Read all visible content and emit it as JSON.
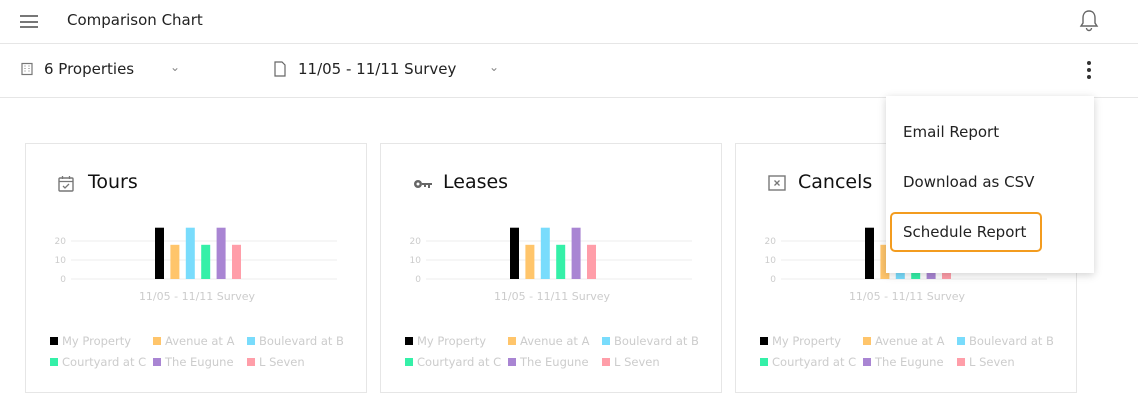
{
  "header": {
    "title": "Comparison Chart"
  },
  "toolbar": {
    "properties": "6 Properties",
    "survey": "11/05 - 11/11 Survey"
  },
  "menu": {
    "items": [
      "Email Report",
      "Download as CSV",
      "Schedule Report"
    ],
    "focused": 2
  },
  "legend": [
    {
      "name": "My Property",
      "color": "#000000"
    },
    {
      "name": "Avenue at A",
      "color": "#ffc56b"
    },
    {
      "name": "Boulevard at B",
      "color": "#79dcfc"
    },
    {
      "name": "Courtyard at C",
      "color": "#35f0a8"
    },
    {
      "name": "The Eugune",
      "color": "#a985d3"
    },
    {
      "name": "L Seven",
      "color": "#ff9ea9"
    }
  ],
  "chart_data": [
    {
      "type": "bar",
      "title": "Tours",
      "xlabel": "11/05 - 11/11 Survey",
      "yticks": [
        "0",
        "10",
        "20"
      ],
      "ylim": [
        0,
        30
      ],
      "values": [
        27,
        18,
        27,
        18,
        27,
        18
      ]
    },
    {
      "type": "bar",
      "title": "Leases",
      "xlabel": "11/05 - 11/11 Survey",
      "yticks": [
        "0",
        "10",
        "20"
      ],
      "ylim": [
        0,
        30
      ],
      "values": [
        27,
        18,
        27,
        18,
        27,
        18
      ]
    },
    {
      "type": "bar",
      "title": "Cancels",
      "xlabel": "11/05 - 11/11 Survey",
      "yticks": [
        "0",
        "10",
        "20"
      ],
      "ylim": [
        0,
        30
      ],
      "values": [
        27,
        18,
        18,
        18,
        18,
        18
      ]
    }
  ]
}
